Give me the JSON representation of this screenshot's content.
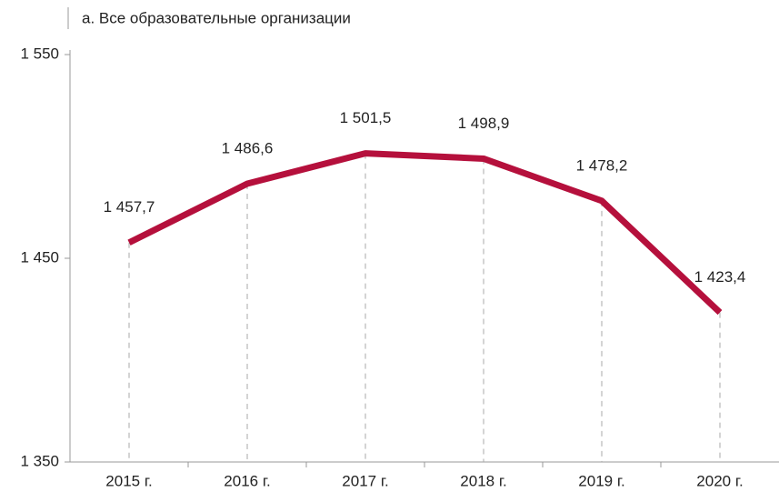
{
  "chart_data": {
    "type": "line",
    "title": "а. Все образовательные организации",
    "categories": [
      "2015 г.",
      "2016 г.",
      "2017 г.",
      "2018 г.",
      "2019 г.",
      "2020 г."
    ],
    "values": [
      1457.7,
      1486.6,
      1501.5,
      1498.9,
      1478.2,
      1423.4
    ],
    "value_labels": [
      "1 457,7",
      "1 486,6",
      "1 501,5",
      "1 498,9",
      "1 478,2",
      "1 423,4"
    ],
    "color": "#b5103c",
    "ylim": [
      1350,
      1550
    ],
    "yticks": [
      {
        "value": 1350,
        "label": "1 350"
      },
      {
        "value": 1450,
        "label": "1 450"
      },
      {
        "value": 1550,
        "label": "1 550"
      }
    ]
  }
}
